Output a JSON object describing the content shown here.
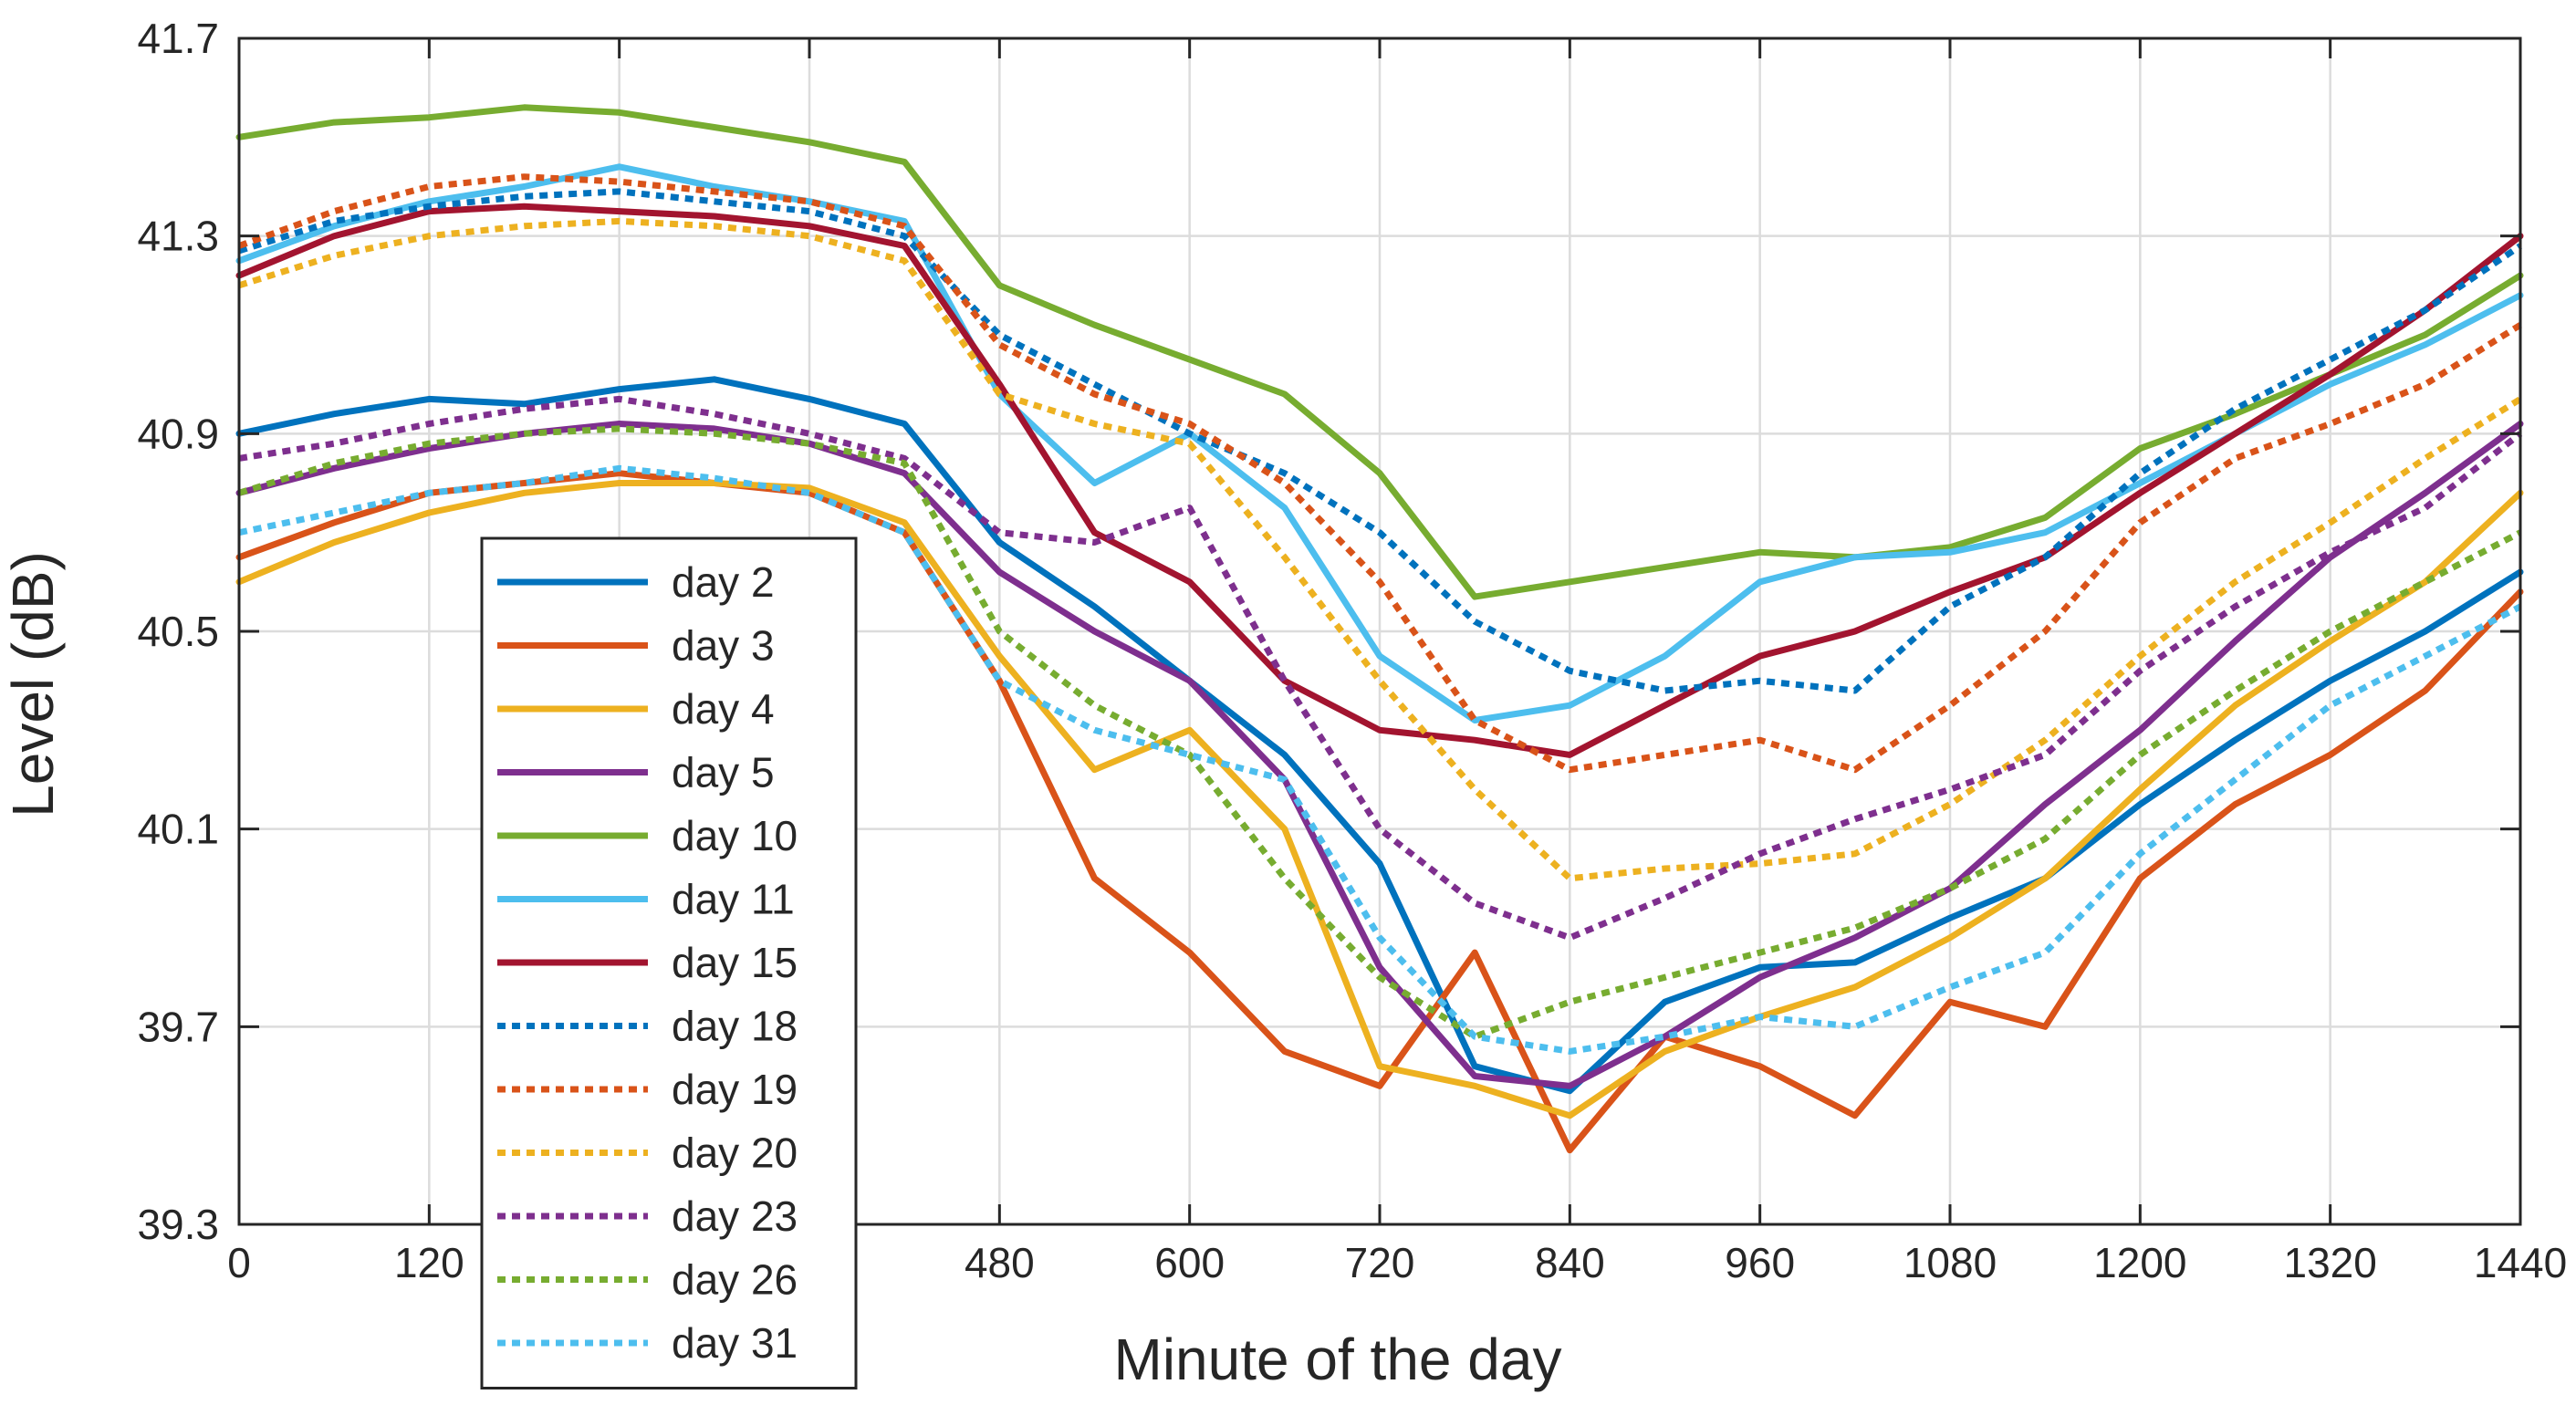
{
  "chart_data": {
    "type": "line",
    "title": "",
    "xlabel": "Minute of the day",
    "ylabel": "Level (dB)",
    "xlim": [
      0,
      1440
    ],
    "ylim": [
      39.3,
      41.7
    ],
    "xticks": [
      0,
      120,
      240,
      360,
      480,
      600,
      720,
      840,
      960,
      1080,
      1200,
      1320,
      1440
    ],
    "yticks": [
      39.3,
      39.7,
      40.1,
      40.5,
      40.9,
      41.3,
      41.7
    ],
    "xtick_labels": [
      "0",
      "120",
      "",
      "",
      "480",
      "600",
      "720",
      "840",
      "960",
      "1080",
      "1200",
      "1320",
      "1440"
    ],
    "ytick_labels": [
      "39.3",
      "39.7",
      "40.1",
      "40.5",
      "40.9",
      "41.3",
      "41.7"
    ],
    "grid": true,
    "legend_position": "bottom-left",
    "x": [
      0,
      60,
      120,
      180,
      240,
      300,
      360,
      420,
      480,
      540,
      600,
      660,
      720,
      780,
      840,
      900,
      960,
      1020,
      1080,
      1140,
      1200,
      1260,
      1320,
      1380,
      1440
    ],
    "series": [
      {
        "name": "day 2",
        "color": "#0072BD",
        "style": "solid",
        "values": [
          40.9,
          40.94,
          40.97,
          40.96,
          40.99,
          41.01,
          40.97,
          40.92,
          40.68,
          40.55,
          40.4,
          40.25,
          40.03,
          39.62,
          39.57,
          39.75,
          39.82,
          39.83,
          39.92,
          40.0,
          40.15,
          40.28,
          40.4,
          40.5,
          40.62
        ]
      },
      {
        "name": "day 3",
        "color": "#D95319",
        "style": "solid",
        "values": [
          40.65,
          40.72,
          40.78,
          40.8,
          40.82,
          40.8,
          40.78,
          40.7,
          40.4,
          40.0,
          39.85,
          39.65,
          39.58,
          39.85,
          39.45,
          39.68,
          39.62,
          39.52,
          39.75,
          39.7,
          40.0,
          40.15,
          40.25,
          40.38,
          40.58
        ]
      },
      {
        "name": "day 4",
        "color": "#EDB120",
        "style": "solid",
        "values": [
          40.6,
          40.68,
          40.74,
          40.78,
          40.8,
          40.8,
          40.79,
          40.72,
          40.45,
          40.22,
          40.3,
          40.1,
          39.62,
          39.58,
          39.52,
          39.65,
          39.72,
          39.78,
          39.88,
          40.0,
          40.18,
          40.35,
          40.48,
          40.6,
          40.78
        ]
      },
      {
        "name": "day 5",
        "color": "#7E2F8E",
        "style": "solid",
        "values": [
          40.78,
          40.83,
          40.87,
          40.9,
          40.92,
          40.91,
          40.88,
          40.82,
          40.62,
          40.5,
          40.4,
          40.2,
          39.82,
          39.6,
          39.58,
          39.68,
          39.8,
          39.88,
          39.98,
          40.15,
          40.3,
          40.48,
          40.65,
          40.78,
          40.92
        ]
      },
      {
        "name": "day 10",
        "color": "#77AC30",
        "style": "solid",
        "values": [
          41.5,
          41.53,
          41.54,
          41.56,
          41.55,
          41.52,
          41.49,
          41.45,
          41.2,
          41.12,
          41.05,
          40.98,
          40.82,
          40.57,
          40.6,
          40.63,
          40.66,
          40.65,
          40.67,
          40.73,
          40.87,
          40.94,
          41.02,
          41.1,
          41.22
        ]
      },
      {
        "name": "day 11",
        "color": "#4DBEEE",
        "style": "solid",
        "values": [
          41.25,
          41.32,
          41.37,
          41.4,
          41.44,
          41.4,
          41.37,
          41.33,
          40.98,
          40.8,
          40.9,
          40.75,
          40.45,
          40.32,
          40.35,
          40.45,
          40.6,
          40.65,
          40.66,
          40.7,
          40.8,
          40.9,
          41.0,
          41.08,
          41.18
        ]
      },
      {
        "name": "day 15",
        "color": "#A2142F",
        "style": "solid",
        "values": [
          41.22,
          41.3,
          41.35,
          41.36,
          41.35,
          41.34,
          41.32,
          41.28,
          41.0,
          40.7,
          40.6,
          40.4,
          40.3,
          40.28,
          40.25,
          40.35,
          40.45,
          40.5,
          40.58,
          40.65,
          40.78,
          40.9,
          41.02,
          41.15,
          41.3
        ]
      },
      {
        "name": "day 18",
        "color": "#0072BD",
        "style": "dotted",
        "values": [
          41.27,
          41.33,
          41.36,
          41.38,
          41.39,
          41.37,
          41.35,
          41.3,
          41.1,
          41.0,
          40.9,
          40.82,
          40.7,
          40.52,
          40.42,
          40.38,
          40.4,
          40.38,
          40.55,
          40.65,
          40.82,
          40.95,
          41.05,
          41.15,
          41.28
        ]
      },
      {
        "name": "day 19",
        "color": "#D95319",
        "style": "dotted",
        "values": [
          41.28,
          41.35,
          41.4,
          41.42,
          41.41,
          41.39,
          41.37,
          41.32,
          41.08,
          40.98,
          40.92,
          40.8,
          40.6,
          40.32,
          40.22,
          40.25,
          40.28,
          40.22,
          40.35,
          40.5,
          40.72,
          40.85,
          40.92,
          41.0,
          41.12
        ]
      },
      {
        "name": "day 20",
        "color": "#EDB120",
        "style": "dotted",
        "values": [
          41.2,
          41.26,
          41.3,
          41.32,
          41.33,
          41.32,
          41.3,
          41.25,
          40.98,
          40.92,
          40.88,
          40.65,
          40.4,
          40.18,
          40.0,
          40.02,
          40.03,
          40.05,
          40.15,
          40.28,
          40.45,
          40.6,
          40.72,
          40.85,
          40.97
        ]
      },
      {
        "name": "day 23",
        "color": "#7E2F8E",
        "style": "dotted",
        "values": [
          40.85,
          40.88,
          40.92,
          40.95,
          40.97,
          40.94,
          40.9,
          40.85,
          40.7,
          40.68,
          40.75,
          40.4,
          40.1,
          39.95,
          39.88,
          39.96,
          40.05,
          40.12,
          40.18,
          40.25,
          40.42,
          40.55,
          40.66,
          40.75,
          40.9
        ]
      },
      {
        "name": "day 26",
        "color": "#77AC30",
        "style": "dotted",
        "values": [
          40.78,
          40.84,
          40.88,
          40.9,
          40.91,
          40.9,
          40.88,
          40.84,
          40.5,
          40.35,
          40.25,
          40.0,
          39.8,
          39.68,
          39.75,
          39.8,
          39.85,
          39.9,
          39.98,
          40.08,
          40.25,
          40.38,
          40.5,
          40.6,
          40.7
        ]
      },
      {
        "name": "day 31",
        "color": "#4DBEEE",
        "style": "dotted",
        "values": [
          40.7,
          40.74,
          40.78,
          40.8,
          40.83,
          40.81,
          40.78,
          40.7,
          40.4,
          40.3,
          40.25,
          40.2,
          39.88,
          39.68,
          39.65,
          39.68,
          39.72,
          39.7,
          39.78,
          39.85,
          40.05,
          40.2,
          40.35,
          40.45,
          40.55
        ]
      }
    ]
  }
}
